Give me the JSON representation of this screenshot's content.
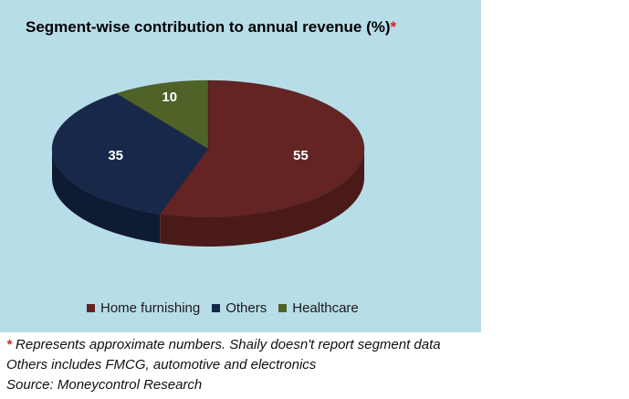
{
  "chart_data": {
    "type": "pie",
    "title": "Segment-wise contribution to annual revenue (%)",
    "title_marker": "*",
    "categories": [
      "Home furnishing",
      "Others",
      "Healthcare"
    ],
    "values": [
      55,
      35,
      10
    ],
    "data_labels": [
      "55",
      "35",
      "10"
    ],
    "colors": [
      "#632423",
      "#17284a",
      "#4f6228"
    ],
    "side_colors": [
      "#4a1a19",
      "#0f1b33",
      "#38461c"
    ],
    "legend_position": "bottom",
    "style": "3d"
  },
  "notes": {
    "star": "*",
    "line1": "Represents approximate numbers. Shaily doesn't report segment data",
    "line2": "Others includes FMCG, automotive and electronics",
    "line3": "Source: Moneycontrol Research"
  },
  "colors": {
    "panel_background": "#b7dde8",
    "accent_red": "#e02020"
  }
}
